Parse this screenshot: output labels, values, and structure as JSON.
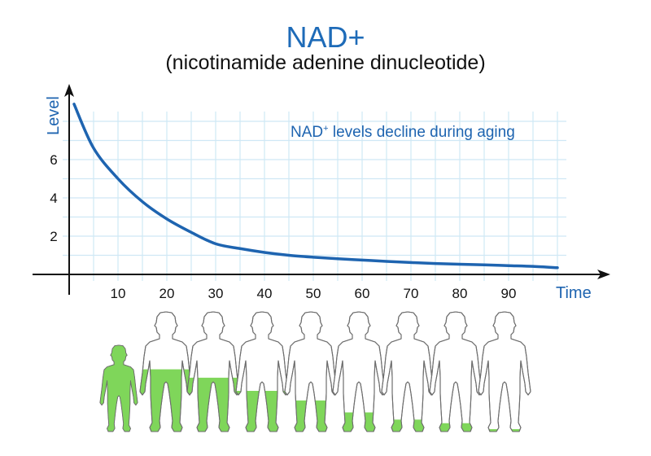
{
  "header": {
    "title": "NAD+",
    "subtitle": "(nicotinamide adenine dinucleotide)"
  },
  "annotation": {
    "main": "NAD",
    "superscript": "+",
    "rest": " levels decline during aging"
  },
  "axes": {
    "ylabel": "Level",
    "xlabel": "Time",
    "yticks": [
      "2",
      "4",
      "6"
    ],
    "xticks": [
      "10",
      "20",
      "30",
      "40",
      "50",
      "60",
      "70",
      "80",
      "90"
    ]
  },
  "colors": {
    "accent_blue": "#1e64b0",
    "grid": "#cfe8f5",
    "axis": "#111111",
    "figure_fill": "#7fd65a",
    "figure_outline": "#6d6d6d"
  },
  "figures": {
    "count": 9,
    "fill_fractions": [
      1.0,
      0.52,
      0.45,
      0.34,
      0.26,
      0.16,
      0.1,
      0.07,
      0.02
    ]
  },
  "chart_data": {
    "type": "line",
    "title": "NAD+ (nicotinamide adenine dinucleotide)",
    "subtitle": "NAD+ levels decline during aging",
    "xlabel": "Time",
    "ylabel": "Level",
    "x": [
      1,
      5,
      10,
      15,
      20,
      25,
      30,
      35,
      40,
      45,
      50,
      55,
      60,
      65,
      70,
      75,
      80,
      85,
      90,
      95,
      100
    ],
    "series": [
      {
        "name": "NAD+ level",
        "values": [
          8.9,
          6.6,
          5.0,
          3.8,
          2.9,
          2.2,
          1.6,
          1.35,
          1.15,
          1.0,
          0.9,
          0.82,
          0.75,
          0.68,
          0.62,
          0.57,
          0.53,
          0.5,
          0.46,
          0.42,
          0.35
        ]
      }
    ],
    "xlim": [
      0,
      100
    ],
    "ylim": [
      0,
      9
    ],
    "xticks": [
      10,
      20,
      30,
      40,
      50,
      60,
      70,
      80,
      90
    ],
    "yticks": [
      2,
      4,
      6
    ],
    "grid": true,
    "legend": null,
    "annotations": [
      "NAD+ levels decline during aging"
    ]
  }
}
